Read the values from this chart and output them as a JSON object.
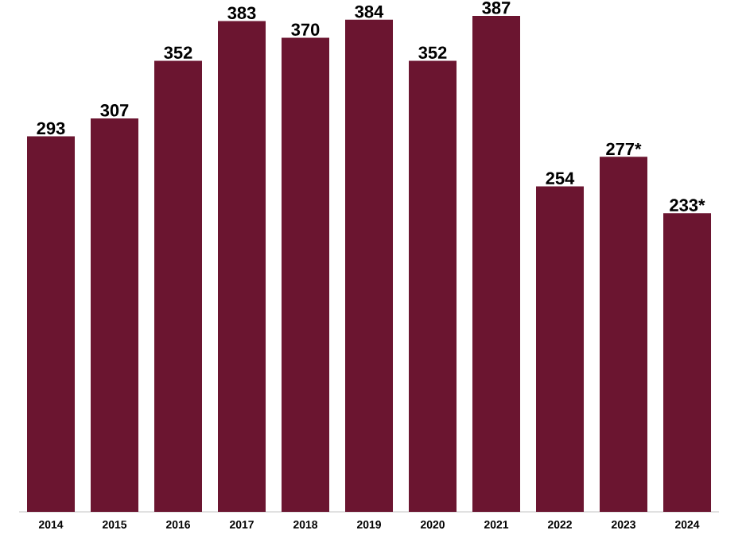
{
  "chart_data": {
    "type": "bar",
    "categories": [
      "2014",
      "2015",
      "2016",
      "2017",
      "2018",
      "2019",
      "2020",
      "2021",
      "2022",
      "2023",
      "2024"
    ],
    "values": [
      293,
      307,
      352,
      383,
      370,
      384,
      352,
      387,
      254,
      277,
      233
    ],
    "value_labels": [
      "293",
      "307",
      "352",
      "383",
      "370",
      "384",
      "352",
      "387",
      "254",
      "277*",
      "233*"
    ],
    "color": "#6b1530"
  }
}
